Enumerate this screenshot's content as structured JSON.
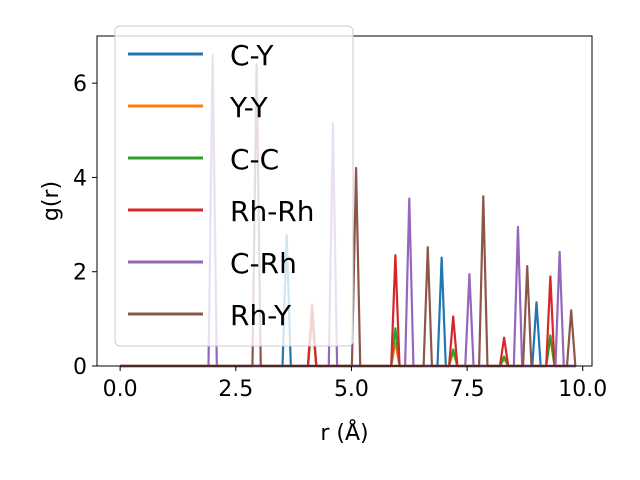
{
  "chart_data": {
    "type": "line",
    "xlabel": "r (Å)",
    "ylabel": "g(r)",
    "xlim": [
      -0.5,
      10.2
    ],
    "ylim": [
      0,
      7
    ],
    "x_ticks": [
      0.0,
      2.5,
      5.0,
      7.5,
      10.0
    ],
    "x_tick_labels": [
      "0.0",
      "2.5",
      "5.0",
      "7.5",
      "10.0"
    ],
    "y_ticks": [
      0,
      2,
      4,
      6
    ],
    "y_tick_labels": [
      "0",
      "2",
      "4",
      "6"
    ],
    "grid": false,
    "legend_position": "upper-left",
    "x_range": [
      0,
      9.85
    ],
    "peak_half_width": 0.09,
    "series": [
      {
        "name": "C-Y",
        "color": "#1f77b4",
        "peaks": [
          [
            3.6,
            2.78
          ],
          [
            6.95,
            2.3
          ],
          [
            9.0,
            1.35
          ]
        ]
      },
      {
        "name": "Y-Y",
        "color": "#ff7f0e",
        "peaks": [
          [
            4.15,
            1.0
          ],
          [
            5.95,
            0.5
          ],
          [
            7.2,
            0.3
          ],
          [
            8.3,
            0.15
          ],
          [
            9.3,
            0.6
          ]
        ]
      },
      {
        "name": "C-C",
        "color": "#2ca02c",
        "peaks": [
          [
            4.15,
            1.1
          ],
          [
            5.95,
            0.8
          ],
          [
            7.2,
            0.35
          ],
          [
            8.3,
            0.2
          ],
          [
            9.3,
            0.65
          ]
        ]
      },
      {
        "name": "Rh-Rh",
        "color": "#d62728",
        "peaks": [
          [
            4.15,
            1.3
          ],
          [
            5.95,
            2.35
          ],
          [
            7.2,
            1.05
          ],
          [
            8.3,
            0.6
          ],
          [
            9.3,
            1.9
          ]
        ]
      },
      {
        "name": "C-Rh",
        "color": "#9467bd",
        "peaks": [
          [
            2.0,
            6.6
          ],
          [
            4.6,
            5.15
          ],
          [
            6.25,
            3.55
          ],
          [
            7.55,
            1.95
          ],
          [
            8.6,
            2.95
          ],
          [
            9.5,
            2.42
          ]
        ]
      },
      {
        "name": "Rh-Y",
        "color": "#8c564b",
        "peaks": [
          [
            2.95,
            6.4
          ],
          [
            5.1,
            4.2
          ],
          [
            6.65,
            2.52
          ],
          [
            7.85,
            3.6
          ],
          [
            8.8,
            2.12
          ],
          [
            9.75,
            1.18
          ]
        ]
      }
    ]
  }
}
